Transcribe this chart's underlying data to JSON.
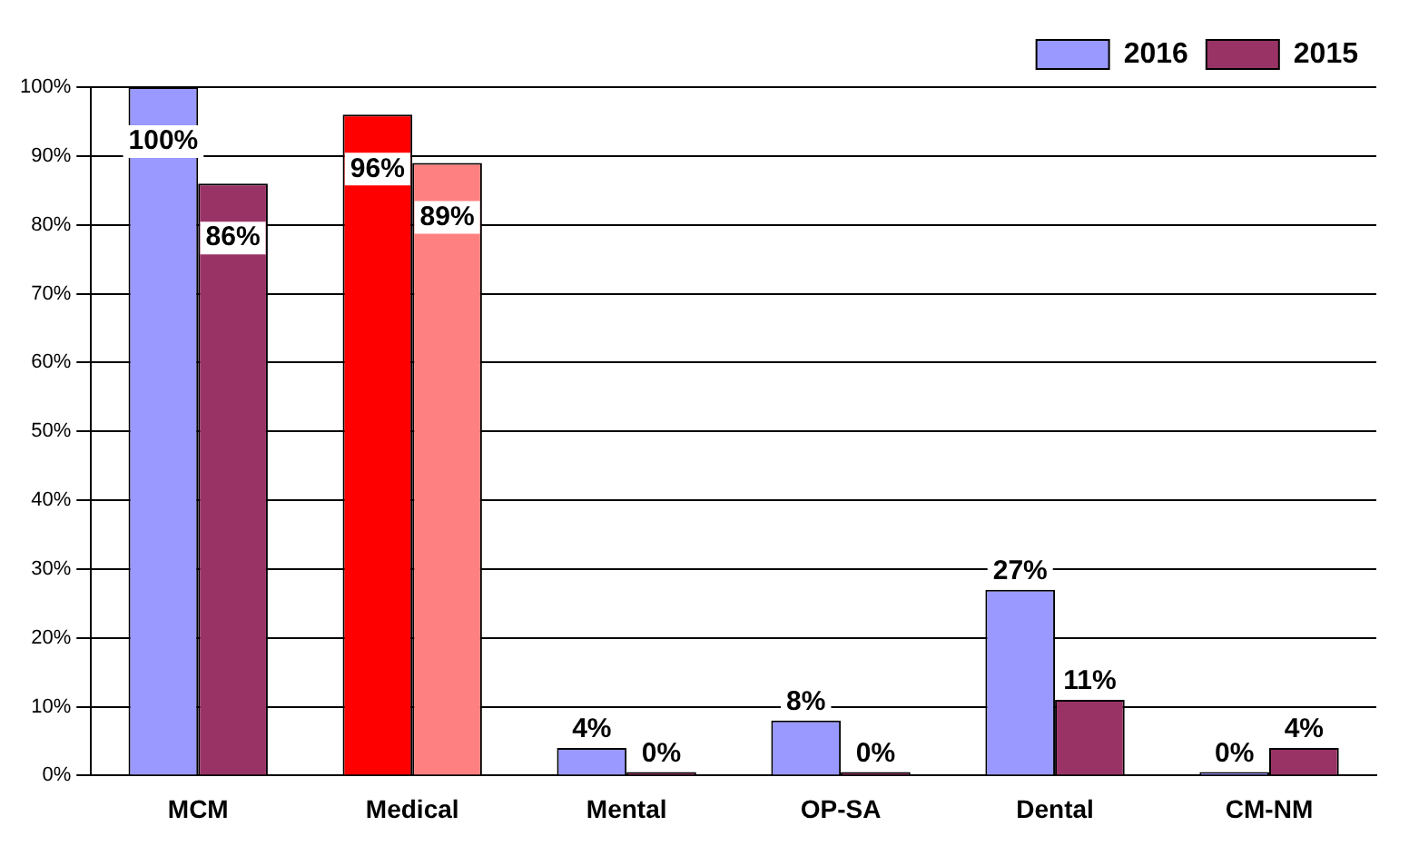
{
  "chart_data": {
    "type": "bar",
    "categories": [
      "MCM",
      "Medical",
      "Mental",
      "OP-SA",
      "Dental",
      "CM-NM"
    ],
    "series": [
      {
        "name": "2016",
        "color": "#9999ff",
        "colors": [
          "#9999ff",
          "#ff0000",
          "#9999ff",
          "#9999ff",
          "#9999ff",
          "#9999ff"
        ],
        "values": [
          100,
          96,
          4,
          8,
          27,
          0
        ],
        "value_labels": [
          "100%",
          "96%",
          "4%",
          "8%",
          "27%",
          "0%"
        ]
      },
      {
        "name": "2015",
        "color": "#993366",
        "colors": [
          "#993366",
          "#ff8080",
          "#993366",
          "#993366",
          "#993366",
          "#993366"
        ],
        "values": [
          86,
          89,
          0,
          0,
          11,
          4
        ],
        "value_labels": [
          "86%",
          "89%",
          "0%",
          "0%",
          "11%",
          "4%"
        ]
      }
    ],
    "ylim": [
      0,
      100
    ],
    "yticks": [
      {
        "value": 0,
        "label": "0%"
      },
      {
        "value": 10,
        "label": "10%"
      },
      {
        "value": 20,
        "label": "20%"
      },
      {
        "value": 30,
        "label": "30%"
      },
      {
        "value": 40,
        "label": "40%"
      },
      {
        "value": 50,
        "label": "50%"
      },
      {
        "value": 60,
        "label": "60%"
      },
      {
        "value": 70,
        "label": "70%"
      },
      {
        "value": 80,
        "label": "80%"
      },
      {
        "value": 90,
        "label": "90%"
      },
      {
        "value": 100,
        "label": "100%"
      }
    ],
    "grid": "y",
    "legend": "top right"
  }
}
